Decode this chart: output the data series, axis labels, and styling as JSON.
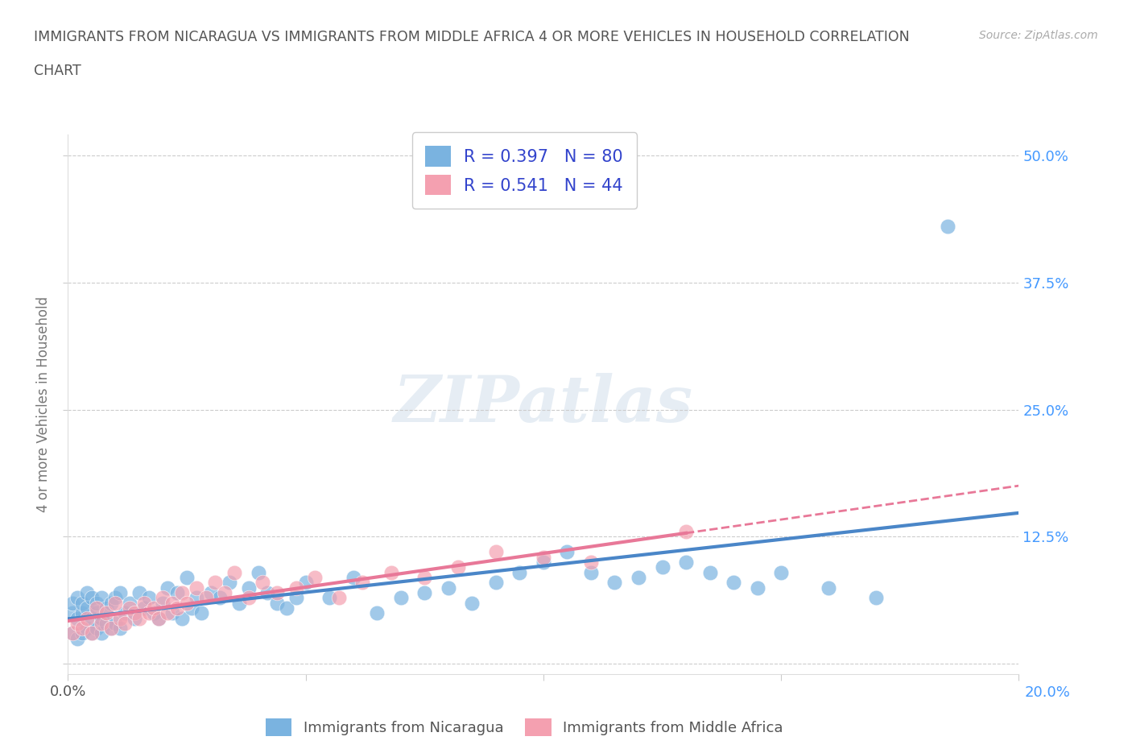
{
  "title_line1": "IMMIGRANTS FROM NICARAGUA VS IMMIGRANTS FROM MIDDLE AFRICA 4 OR MORE VEHICLES IN HOUSEHOLD CORRELATION",
  "title_line2": "CHART",
  "source": "Source: ZipAtlas.com",
  "ylabel": "4 or more Vehicles in Household",
  "xlim": [
    0.0,
    0.2
  ],
  "ylim": [
    -0.01,
    0.5
  ],
  "nicaragua_color": "#7ab3e0",
  "middle_africa_color": "#f4a0b0",
  "nicaragua_line_color": "#4a86c8",
  "middle_africa_line_color": "#e87898",
  "nicaragua_R": 0.397,
  "nicaragua_N": 80,
  "middle_africa_R": 0.541,
  "middle_africa_N": 44,
  "watermark": "ZIPatlas",
  "legend_nicaragua": "Immigrants from Nicaragua",
  "legend_middle_africa": "Immigrants from Middle Africa",
  "nicaragua_x": [
    0.001,
    0.001,
    0.001,
    0.002,
    0.002,
    0.002,
    0.003,
    0.003,
    0.003,
    0.004,
    0.004,
    0.004,
    0.005,
    0.005,
    0.005,
    0.006,
    0.006,
    0.006,
    0.007,
    0.007,
    0.007,
    0.008,
    0.008,
    0.009,
    0.009,
    0.01,
    0.01,
    0.011,
    0.011,
    0.012,
    0.013,
    0.014,
    0.015,
    0.016,
    0.017,
    0.018,
    0.019,
    0.02,
    0.021,
    0.022,
    0.023,
    0.024,
    0.025,
    0.026,
    0.027,
    0.028,
    0.03,
    0.032,
    0.034,
    0.036,
    0.038,
    0.04,
    0.042,
    0.044,
    0.046,
    0.048,
    0.05,
    0.055,
    0.06,
    0.065,
    0.07,
    0.075,
    0.08,
    0.085,
    0.09,
    0.095,
    0.1,
    0.105,
    0.11,
    0.115,
    0.12,
    0.125,
    0.13,
    0.135,
    0.14,
    0.145,
    0.15,
    0.16,
    0.17,
    0.185
  ],
  "nicaragua_y": [
    0.03,
    0.05,
    0.06,
    0.025,
    0.045,
    0.065,
    0.03,
    0.05,
    0.06,
    0.035,
    0.055,
    0.07,
    0.03,
    0.045,
    0.065,
    0.035,
    0.05,
    0.06,
    0.03,
    0.045,
    0.065,
    0.04,
    0.055,
    0.035,
    0.06,
    0.04,
    0.065,
    0.035,
    0.07,
    0.05,
    0.06,
    0.045,
    0.07,
    0.055,
    0.065,
    0.05,
    0.045,
    0.06,
    0.075,
    0.05,
    0.07,
    0.045,
    0.085,
    0.055,
    0.065,
    0.05,
    0.07,
    0.065,
    0.08,
    0.06,
    0.075,
    0.09,
    0.07,
    0.06,
    0.055,
    0.065,
    0.08,
    0.065,
    0.085,
    0.05,
    0.065,
    0.07,
    0.075,
    0.06,
    0.08,
    0.09,
    0.1,
    0.11,
    0.09,
    0.08,
    0.085,
    0.095,
    0.1,
    0.09,
    0.08,
    0.075,
    0.09,
    0.075,
    0.065,
    0.43
  ],
  "middle_africa_x": [
    0.001,
    0.002,
    0.003,
    0.004,
    0.005,
    0.006,
    0.007,
    0.008,
    0.009,
    0.01,
    0.011,
    0.012,
    0.013,
    0.014,
    0.015,
    0.016,
    0.017,
    0.018,
    0.019,
    0.02,
    0.021,
    0.022,
    0.023,
    0.024,
    0.025,
    0.027,
    0.029,
    0.031,
    0.033,
    0.035,
    0.038,
    0.041,
    0.044,
    0.048,
    0.052,
    0.057,
    0.062,
    0.068,
    0.075,
    0.082,
    0.09,
    0.1,
    0.11,
    0.13
  ],
  "middle_africa_y": [
    0.03,
    0.04,
    0.035,
    0.045,
    0.03,
    0.055,
    0.04,
    0.05,
    0.035,
    0.06,
    0.045,
    0.04,
    0.055,
    0.05,
    0.045,
    0.06,
    0.05,
    0.055,
    0.045,
    0.065,
    0.05,
    0.06,
    0.055,
    0.07,
    0.06,
    0.075,
    0.065,
    0.08,
    0.07,
    0.09,
    0.065,
    0.08,
    0.07,
    0.075,
    0.085,
    0.065,
    0.08,
    0.09,
    0.085,
    0.095,
    0.11,
    0.105,
    0.1,
    0.13
  ]
}
